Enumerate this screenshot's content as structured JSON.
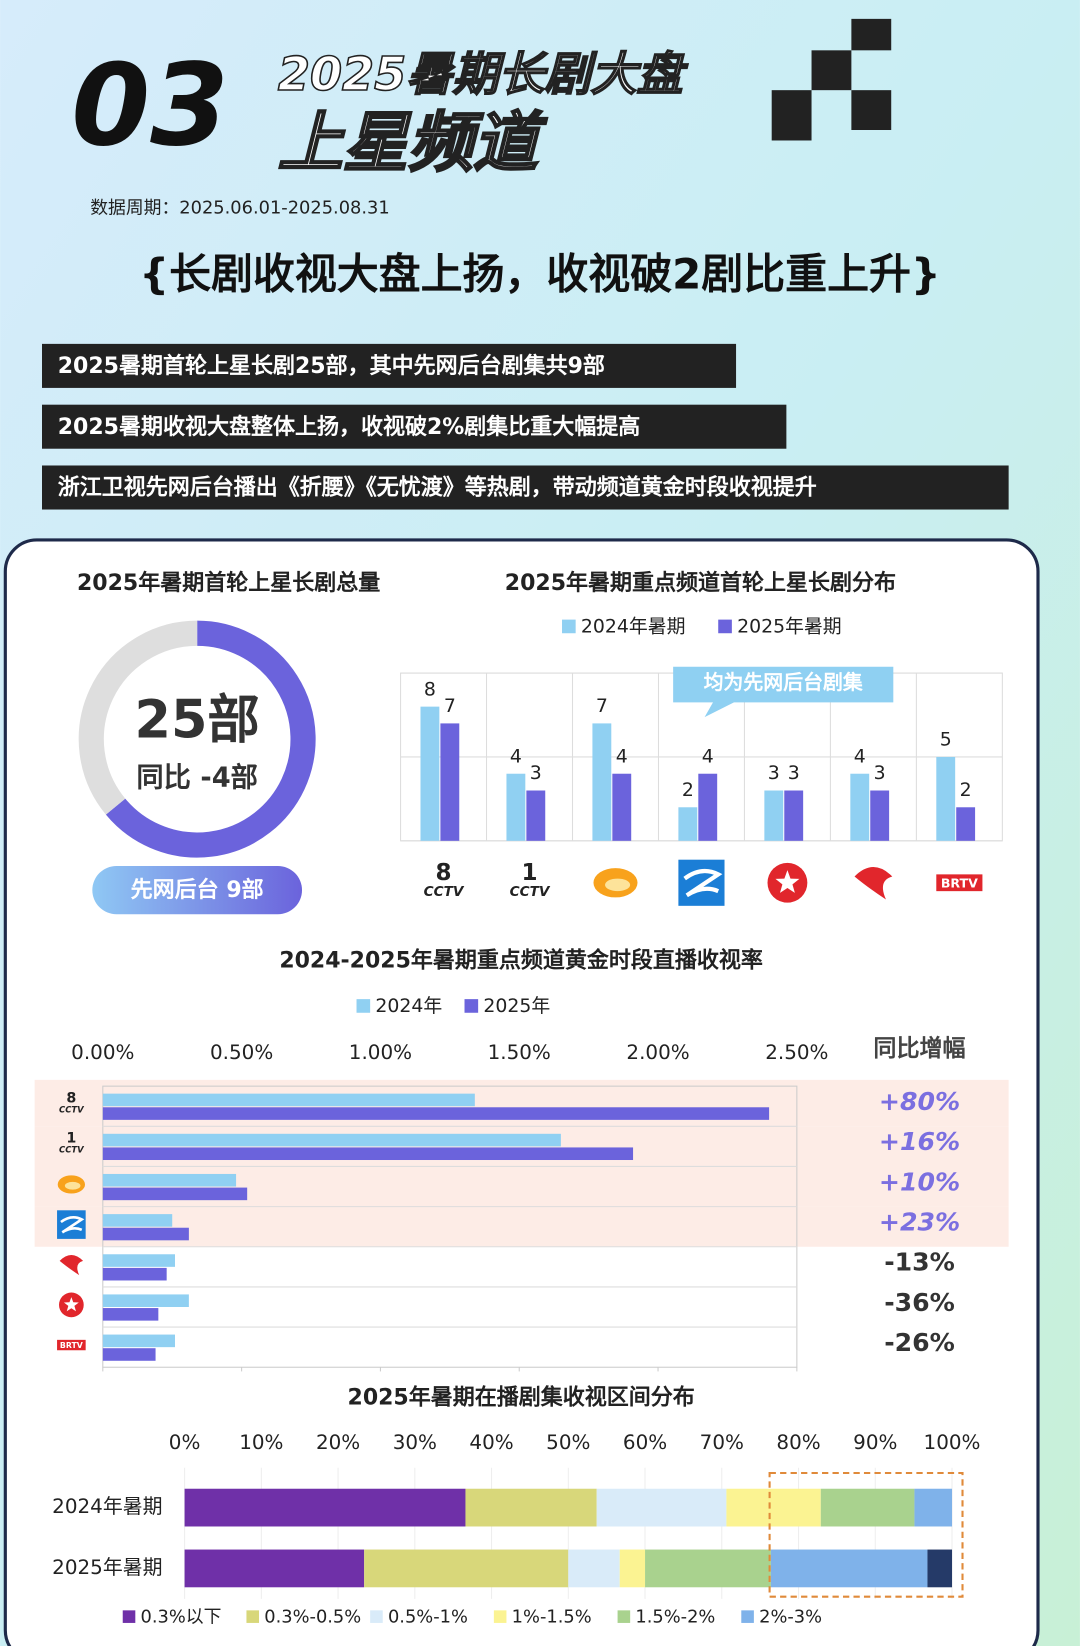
{
  "header": {
    "number": "03",
    "title": "2025暑期长剧大盘",
    "subtitle": "上星频道",
    "period": "数据周期：2025.06.01-2025.08.31",
    "headline": "{长剧收视大盘上扬，收视破2剧比重上升}",
    "bullets": [
      "2025暑期首轮上星长剧25部，其中先网后台剧集共9部",
      "2025暑期收视大盘整体上扬，收视破2%剧集比重大幅提高",
      "浙江卫视先网后台播出《折腰》《无忧渡》等热剧，带动频道黄金时段收视提升"
    ]
  },
  "chart_data": [
    {
      "type": "donut",
      "title": "2025年暑期首轮上星长剧总量",
      "center_value": "25部",
      "center_note": "同比 -4部",
      "badge": "先网后台 9部",
      "values": [
        16,
        9
      ],
      "colors": [
        "#6b63dc",
        "#dedede"
      ]
    },
    {
      "type": "bar",
      "title": "2025年暑期重点频道首轮上星长剧分布",
      "categories": [
        "8",
        "1",
        null,
        null,
        null,
        null,
        "BRTV"
      ],
      "brand_labels": [
        "CCTV",
        "CCTV",
        null,
        null,
        null,
        null,
        null
      ],
      "series": [
        {
          "name": "2024年暑期",
          "color": "#90d0f2",
          "values": [
            8,
            4,
            7,
            2,
            3,
            4,
            5
          ]
        },
        {
          "name": "2025年暑期",
          "color": "#6b63dc",
          "values": [
            7,
            3,
            4,
            4,
            3,
            3,
            2
          ]
        }
      ],
      "ylim": [
        0,
        10
      ],
      "gridlines": [
        0,
        5,
        10
      ],
      "annotation": "均为先网后台剧集"
    },
    {
      "type": "hbar",
      "title": "2024-2025年暑期重点频道黄金时段直播收视率",
      "categories": [
        "8",
        "1",
        null,
        null,
        null,
        null,
        "BRTV"
      ],
      "brand_labels": [
        "CCTV",
        "CCTV",
        null,
        null,
        null,
        null,
        null
      ],
      "series": [
        {
          "name": "2024年",
          "color": "#90d0f2",
          "values": [
            1.34,
            1.65,
            0.48,
            0.25,
            0.26,
            0.31,
            0.26
          ]
        },
        {
          "name": "2025年",
          "color": "#6b63dc",
          "values": [
            2.4,
            1.91,
            0.52,
            0.31,
            0.23,
            0.2,
            0.19
          ]
        }
      ],
      "xlim": [
        0,
        2.5
      ],
      "xticks": [
        {
          "value": 0,
          "label": "0.00%"
        },
        {
          "value": 0.5,
          "label": "0.50%"
        },
        {
          "value": 1,
          "label": "1.00%"
        },
        {
          "value": 1.5,
          "label": "1.50%"
        },
        {
          "value": 2,
          "label": "2.00%"
        },
        {
          "value": 2.5,
          "label": "2.50%"
        }
      ],
      "yoy_title": "同比增幅",
      "yoy_labels": [
        "+80%",
        "+16%",
        "+10%",
        "+23%",
        "-13%",
        "-36%",
        "-26%"
      ],
      "highlighted": [
        true,
        true,
        true,
        true,
        false,
        false,
        false
      ]
    },
    {
      "type": "stacked_hbar",
      "title": "2025年暑期在播剧集收视区间分布",
      "categories": [
        "2024年暑期",
        "2025年暑期"
      ],
      "xlim": [
        0,
        100
      ],
      "xticks": [
        {
          "value": 0,
          "label": "0%"
        },
        {
          "value": 10,
          "label": "10%"
        },
        {
          "value": 20,
          "label": "20%"
        },
        {
          "value": 30,
          "label": "30%"
        },
        {
          "value": 40,
          "label": "40%"
        },
        {
          "value": 50,
          "label": "50%"
        },
        {
          "value": 60,
          "label": "60%"
        },
        {
          "value": 70,
          "label": "70%"
        },
        {
          "value": 80,
          "label": "80%"
        },
        {
          "value": 90,
          "label": "90%"
        },
        {
          "value": 100,
          "label": "100%"
        }
      ],
      "series": [
        {
          "name": "0.3%以下",
          "color": "#6f30a8",
          "values": [
            36.6,
            23.4
          ]
        },
        {
          "name": "0.3%-0.5%",
          "color": "#d8d77a",
          "values": [
            17.1,
            26.6
          ]
        },
        {
          "name": "0.5%-1%",
          "color": "#d9ebf9",
          "values": [
            16.9,
            6.7
          ]
        },
        {
          "name": "1%-1.5%",
          "color": "#fbf392",
          "values": [
            12.3,
            3.3
          ]
        },
        {
          "name": "1.5%-2%",
          "color": "#a9d28e",
          "values": [
            12.2,
            16.4
          ]
        },
        {
          "name": "2%-3%",
          "color": "#7fb2ea",
          "values": [
            4.9,
            20.4
          ]
        },
        {
          "name": null,
          "color": "#253a68",
          "values": [
            0,
            3.2
          ]
        }
      ]
    }
  ]
}
